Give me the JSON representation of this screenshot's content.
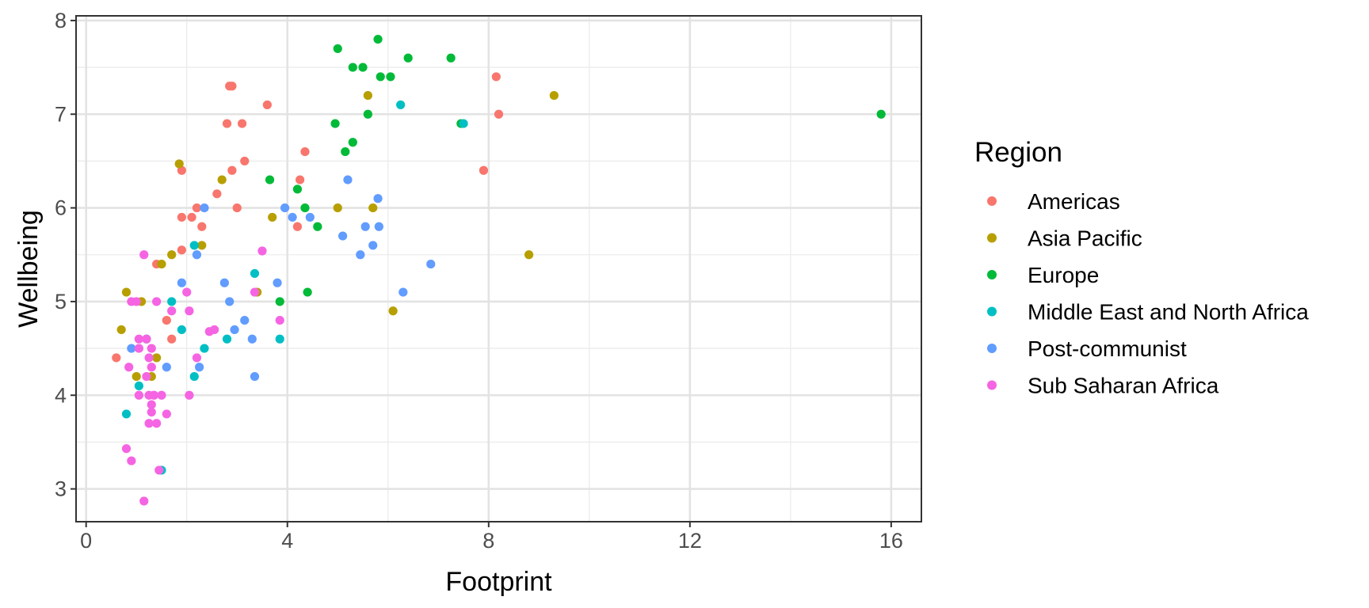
{
  "chart_data": {
    "type": "scatter",
    "xlabel": "Footprint",
    "ylabel": "Wellbeing",
    "xlim": [
      -0.2,
      16.6
    ],
    "ylim": [
      2.65,
      8.05
    ],
    "x_ticks": [
      0,
      4,
      8,
      12,
      16
    ],
    "y_ticks": [
      3,
      4,
      5,
      6,
      7,
      8
    ],
    "x_tick_labels": [
      "0",
      "4",
      "8",
      "12",
      "16"
    ],
    "y_tick_labels": [
      "3",
      "4",
      "5",
      "6",
      "7",
      "8"
    ],
    "grid": true,
    "legend": {
      "title": "Region",
      "placement": "right"
    },
    "series": [
      {
        "name": "Americas",
        "color": "#F8766D",
        "points": [
          [
            0.6,
            4.4
          ],
          [
            1.4,
            5.4
          ],
          [
            1.6,
            4.8
          ],
          [
            1.7,
            4.6
          ],
          [
            1.9,
            5.55
          ],
          [
            1.9,
            5.9
          ],
          [
            1.9,
            6.4
          ],
          [
            2.1,
            5.9
          ],
          [
            2.2,
            6.0
          ],
          [
            2.3,
            5.8
          ],
          [
            2.6,
            6.15
          ],
          [
            2.8,
            6.9
          ],
          [
            2.85,
            7.3
          ],
          [
            2.9,
            7.3
          ],
          [
            2.9,
            6.4
          ],
          [
            3.0,
            6.0
          ],
          [
            3.1,
            6.9
          ],
          [
            3.15,
            6.5
          ],
          [
            3.6,
            7.1
          ],
          [
            4.2,
            5.8
          ],
          [
            4.25,
            6.3
          ],
          [
            4.35,
            6.6
          ],
          [
            7.9,
            6.4
          ],
          [
            8.15,
            7.4
          ],
          [
            8.2,
            7.0
          ]
        ]
      },
      {
        "name": "Asia Pacific",
        "color": "#B79F00",
        "points": [
          [
            0.7,
            4.7
          ],
          [
            0.8,
            5.1
          ],
          [
            1.0,
            4.2
          ],
          [
            1.1,
            5.0
          ],
          [
            1.3,
            4.2
          ],
          [
            1.4,
            4.4
          ],
          [
            1.5,
            5.4
          ],
          [
            1.7,
            5.5
          ],
          [
            1.85,
            6.47
          ],
          [
            2.3,
            5.6
          ],
          [
            2.7,
            6.3
          ],
          [
            3.4,
            5.1
          ],
          [
            3.7,
            5.9
          ],
          [
            5.0,
            6.0
          ],
          [
            5.6,
            7.2
          ],
          [
            5.7,
            6.0
          ],
          [
            6.1,
            4.9
          ],
          [
            8.8,
            5.5
          ],
          [
            9.3,
            7.2
          ]
        ]
      },
      {
        "name": "Europe",
        "color": "#00BA38",
        "points": [
          [
            3.65,
            6.3
          ],
          [
            3.85,
            5.0
          ],
          [
            4.2,
            6.2
          ],
          [
            4.35,
            6.0
          ],
          [
            4.4,
            5.1
          ],
          [
            4.6,
            5.8
          ],
          [
            4.95,
            6.9
          ],
          [
            5.0,
            7.7
          ],
          [
            5.15,
            6.6
          ],
          [
            5.3,
            6.7
          ],
          [
            5.3,
            7.5
          ],
          [
            5.5,
            7.5
          ],
          [
            5.6,
            7.0
          ],
          [
            5.8,
            7.8
          ],
          [
            5.85,
            7.4
          ],
          [
            6.05,
            7.4
          ],
          [
            6.4,
            7.6
          ],
          [
            7.25,
            7.6
          ],
          [
            7.45,
            6.9
          ],
          [
            15.8,
            7.0
          ]
        ]
      },
      {
        "name": "Middle East and North Africa",
        "color": "#00BFC4",
        "points": [
          [
            0.8,
            3.8
          ],
          [
            1.05,
            4.1
          ],
          [
            1.2,
            4.6
          ],
          [
            1.5,
            3.2
          ],
          [
            1.7,
            5.0
          ],
          [
            1.9,
            4.7
          ],
          [
            2.15,
            4.2
          ],
          [
            2.15,
            5.6
          ],
          [
            2.35,
            4.5
          ],
          [
            2.8,
            4.6
          ],
          [
            3.35,
            5.3
          ],
          [
            3.85,
            4.6
          ],
          [
            6.25,
            7.1
          ],
          [
            7.5,
            6.9
          ]
        ]
      },
      {
        "name": "Post-communist",
        "color": "#619CFF",
        "points": [
          [
            0.9,
            4.5
          ],
          [
            1.6,
            4.3
          ],
          [
            1.9,
            5.2
          ],
          [
            2.2,
            5.5
          ],
          [
            2.25,
            4.3
          ],
          [
            2.35,
            6.0
          ],
          [
            2.75,
            5.2
          ],
          [
            2.85,
            5.0
          ],
          [
            2.95,
            4.7
          ],
          [
            3.15,
            4.8
          ],
          [
            3.3,
            4.6
          ],
          [
            3.35,
            4.2
          ],
          [
            3.8,
            5.2
          ],
          [
            3.95,
            6.0
          ],
          [
            4.1,
            5.9
          ],
          [
            4.45,
            5.9
          ],
          [
            5.1,
            5.7
          ],
          [
            5.2,
            6.3
          ],
          [
            5.45,
            5.5
          ],
          [
            5.55,
            5.8
          ],
          [
            5.7,
            5.6
          ],
          [
            5.8,
            6.1
          ],
          [
            5.82,
            5.8
          ],
          [
            6.3,
            5.1
          ],
          [
            6.85,
            5.4
          ]
        ]
      },
      {
        "name": "Sub Saharan Africa",
        "color": "#F564E3",
        "points": [
          [
            0.8,
            3.43
          ],
          [
            0.85,
            4.3
          ],
          [
            0.9,
            5.0
          ],
          [
            0.9,
            3.3
          ],
          [
            1.0,
            5.0
          ],
          [
            1.05,
            4.6
          ],
          [
            1.05,
            4.5
          ],
          [
            1.05,
            4.0
          ],
          [
            1.15,
            2.87
          ],
          [
            1.15,
            5.5
          ],
          [
            1.2,
            4.6
          ],
          [
            1.2,
            4.2
          ],
          [
            1.25,
            4.4
          ],
          [
            1.25,
            4.0
          ],
          [
            1.25,
            3.7
          ],
          [
            1.3,
            4.5
          ],
          [
            1.3,
            4.3
          ],
          [
            1.3,
            3.9
          ],
          [
            1.3,
            3.82
          ],
          [
            1.35,
            4.0
          ],
          [
            1.4,
            5.0
          ],
          [
            1.4,
            3.7
          ],
          [
            1.45,
            3.2
          ],
          [
            1.5,
            4.0
          ],
          [
            1.6,
            3.8
          ],
          [
            1.7,
            4.9
          ],
          [
            2.0,
            5.1
          ],
          [
            2.05,
            4.9
          ],
          [
            2.05,
            4.0
          ],
          [
            2.2,
            4.4
          ],
          [
            2.45,
            4.68
          ],
          [
            2.55,
            4.7
          ],
          [
            3.35,
            5.1
          ],
          [
            3.5,
            5.54
          ],
          [
            3.85,
            4.8
          ]
        ]
      }
    ]
  }
}
